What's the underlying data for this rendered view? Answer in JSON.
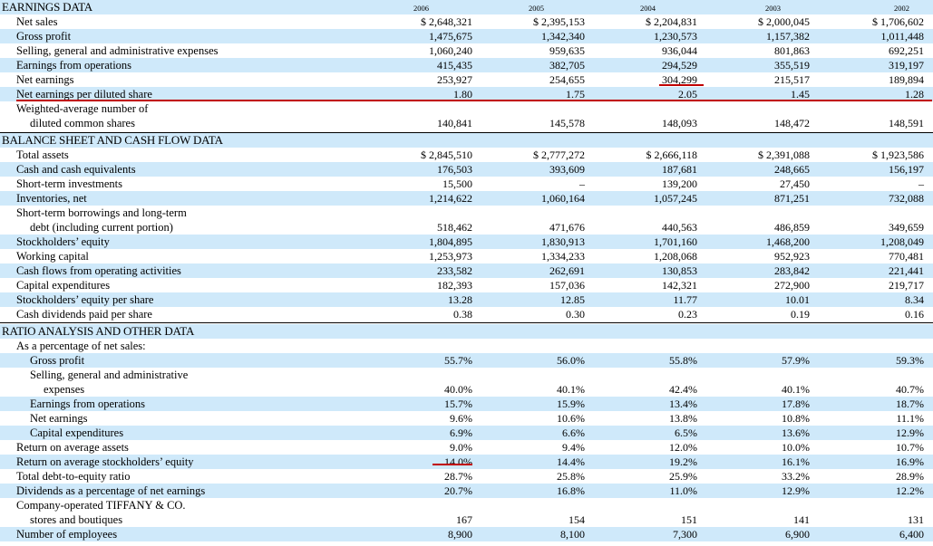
{
  "years": [
    "2006",
    "2005",
    "2004",
    "2003",
    "2002"
  ],
  "sections": {
    "earnings": "EARNINGS DATA",
    "balance": "BALANCE SHEET AND CASH FLOW DATA",
    "ratio": "RATIO ANALYSIS AND OTHER DATA"
  },
  "rows": {
    "net_sales": {
      "label": "Net sales",
      "values": [
        "$ 2,648,321",
        "$ 2,395,153",
        "$ 2,204,831",
        "$ 2,000,045",
        "$ 1,706,602"
      ]
    },
    "gross_profit": {
      "label": "Gross profit",
      "values": [
        "1,475,675",
        "1,342,340",
        "1,230,573",
        "1,157,382",
        "1,011,448"
      ]
    },
    "sga": {
      "label": "Selling, general and administrative expenses",
      "values": [
        "1,060,240",
        "959,635",
        "936,044",
        "801,863",
        "692,251"
      ]
    },
    "earnings_ops": {
      "label": "Earnings from operations",
      "values": [
        "415,435",
        "382,705",
        "294,529",
        "355,519",
        "319,197"
      ]
    },
    "net_earnings": {
      "label": "Net earnings",
      "values": [
        "253,927",
        "254,655",
        "304,299",
        "215,517",
        "189,894"
      ]
    },
    "eps_diluted": {
      "label": "Net earnings per diluted share",
      "values": [
        "1.80",
        "1.75",
        "2.05",
        "1.45",
        "1.28"
      ]
    },
    "wavg_shares": {
      "label1": "Weighted-average number of",
      "label2": "diluted common shares",
      "values": [
        "140,841",
        "145,578",
        "148,093",
        "148,472",
        "148,591"
      ]
    },
    "total_assets": {
      "label": "Total assets",
      "values": [
        "$ 2,845,510",
        "$ 2,777,272",
        "$ 2,666,118",
        "$ 2,391,088",
        "$ 1,923,586"
      ]
    },
    "cash": {
      "label": "Cash and cash equivalents",
      "values": [
        "176,503",
        "393,609",
        "187,681",
        "248,665",
        "156,197"
      ]
    },
    "st_invest": {
      "label": "Short-term investments",
      "values": [
        "15,500",
        "–",
        "139,200",
        "27,450",
        "–"
      ]
    },
    "inventories": {
      "label": "Inventories, net",
      "values": [
        "1,214,622",
        "1,060,164",
        "1,057,245",
        "871,251",
        "732,088"
      ]
    },
    "borrowings": {
      "label1": "Short-term borrowings and long-term",
      "label2": "debt (including current portion)",
      "values": [
        "518,462",
        "471,676",
        "440,563",
        "486,859",
        "349,659"
      ]
    },
    "equity": {
      "label": "Stockholders’ equity",
      "values": [
        "1,804,895",
        "1,830,913",
        "1,701,160",
        "1,468,200",
        "1,208,049"
      ]
    },
    "working_capital": {
      "label": "Working capital",
      "values": [
        "1,253,973",
        "1,334,233",
        "1,208,068",
        "952,923",
        "770,481"
      ]
    },
    "cash_flows_ops": {
      "label": "Cash flows from operating activities",
      "values": [
        "233,582",
        "262,691",
        "130,853",
        "283,842",
        "221,441"
      ]
    },
    "capex": {
      "label": "Capital expenditures",
      "values": [
        "182,393",
        "157,036",
        "142,321",
        "272,900",
        "219,717"
      ]
    },
    "equity_per_share": {
      "label": "Stockholders’ equity per share",
      "values": [
        "13.28",
        "12.85",
        "11.77",
        "10.01",
        "8.34"
      ]
    },
    "dividends_per_share": {
      "label": "Cash dividends paid per share",
      "values": [
        "0.38",
        "0.30",
        "0.23",
        "0.19",
        "0.16"
      ]
    },
    "pct_header": {
      "label": "As a percentage of net sales:"
    },
    "pct_gross": {
      "label": "Gross profit",
      "values": [
        "55.7%",
        "56.0%",
        "55.8%",
        "57.9%",
        "59.3%"
      ]
    },
    "pct_sga": {
      "label1": "Selling, general and administrative",
      "label2": "expenses",
      "values": [
        "40.0%",
        "40.1%",
        "42.4%",
        "40.1%",
        "40.7%"
      ]
    },
    "pct_ops": {
      "label": "Earnings from operations",
      "values": [
        "15.7%",
        "15.9%",
        "13.4%",
        "17.8%",
        "18.7%"
      ]
    },
    "pct_net": {
      "label": "Net earnings",
      "values": [
        "9.6%",
        "10.6%",
        "13.8%",
        "10.8%",
        "11.1%"
      ]
    },
    "pct_capex": {
      "label": "Capital expenditures",
      "values": [
        "6.9%",
        "6.6%",
        "6.5%",
        "13.6%",
        "12.9%"
      ]
    },
    "roa": {
      "label": "Return on average assets",
      "values": [
        "9.0%",
        "9.4%",
        "12.0%",
        "10.0%",
        "10.7%"
      ]
    },
    "roe": {
      "label": "Return on average stockholders’ equity",
      "values": [
        "14.0%",
        "14.4%",
        "19.2%",
        "16.1%",
        "16.9%"
      ]
    },
    "debt_equity": {
      "label": "Total debt-to-equity ratio",
      "values": [
        "28.7%",
        "25.8%",
        "25.9%",
        "33.2%",
        "28.9%"
      ]
    },
    "div_pct": {
      "label": "Dividends as a percentage of net earnings",
      "values": [
        "20.7%",
        "16.8%",
        "11.0%",
        "12.9%",
        "12.2%"
      ]
    },
    "stores": {
      "label1": "Company-operated TIFFANY & CO.",
      "label2": "stores and boutiques",
      "values": [
        "167",
        "154",
        "151",
        "141",
        "131"
      ]
    },
    "employees": {
      "label": "Number of employees",
      "values": [
        "8,900",
        "8,100",
        "7,300",
        "6,900",
        "6,400"
      ]
    }
  },
  "colors": {
    "band": "#cfe9fa",
    "marker": "#c00000"
  }
}
